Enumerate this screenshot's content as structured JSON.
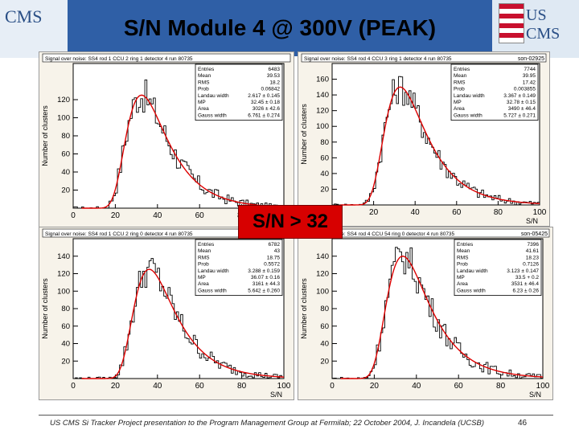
{
  "slide": {
    "title": "S/N Module 4 @ 300V (PEAK)",
    "left_logo_text": "CMS",
    "right_logo_text": "US CMS",
    "footer": "US CMS Si Tracker Project presentation to the Program Management Group at Fermilab; 22 October 2004, J. Incandela (UCSB)",
    "page_number": "46",
    "callout": "S/N > 32"
  },
  "chart_data": [
    {
      "type": "histogram",
      "title": "Signal over noise: SS4 rod 1 CCU 2 ring 1 detector 4 run 80735",
      "tag": "",
      "xlabel": "S/N",
      "ylabel": "Number of clusters",
      "xlim": [
        0,
        100
      ],
      "ylim": [
        0,
        160
      ],
      "xticks": [
        0,
        20,
        40,
        60,
        80,
        100
      ],
      "yticks": [
        20,
        40,
        60,
        80,
        100,
        120
      ],
      "stats": [
        [
          "Entries",
          "6483"
        ],
        [
          "Mean",
          "39.53"
        ],
        [
          "RMS",
          "18.2"
        ],
        [
          "Prob",
          "0.06842"
        ],
        [
          "Landau width",
          "2.617 ± 0.145"
        ],
        [
          "MP",
          "32.45 ± 0.18"
        ],
        [
          "Area",
          "3026 ± 42.6"
        ],
        [
          "Gauss width",
          "6.761 ± 0.274"
        ]
      ],
      "fit": {
        "mp": 32.45,
        "landau_width": 2.617,
        "gauss_width": 6.761,
        "peak": 125
      }
    },
    {
      "type": "histogram",
      "title": "Signal over noise: SS4 rod 4 CCU 3 ring 1 detector 4 run 80735",
      "tag": "son-02925",
      "xlabel": "S/N",
      "ylabel": "Number of clusters",
      "xlim": [
        0,
        100
      ],
      "ylim": [
        0,
        180
      ],
      "xticks": [
        0,
        20,
        40,
        60,
        80,
        100
      ],
      "yticks": [
        20,
        40,
        60,
        80,
        100,
        120,
        140,
        160
      ],
      "stats": [
        [
          "Entries",
          "7744"
        ],
        [
          "Mean",
          "39.95"
        ],
        [
          "RMS",
          "17.42"
        ],
        [
          "Prob",
          "0.003855"
        ],
        [
          "Landau width",
          "3.367 ± 0.149"
        ],
        [
          "MP",
          "32.78 ± 0.15"
        ],
        [
          "Area",
          "3490 ± 46.4"
        ],
        [
          "Gauss width",
          "5.727 ± 0.271"
        ]
      ],
      "fit": {
        "mp": 32.78,
        "landau_width": 3.367,
        "gauss_width": 5.727,
        "peak": 150
      }
    },
    {
      "type": "histogram",
      "title": "Signal over noise: SS4 rod 1 CCU 2 ring 0 detector 4 run 80735",
      "tag": "son-0",
      "xlabel": "S/N",
      "ylabel": "Number of clusters",
      "xlim": [
        0,
        100
      ],
      "ylim": [
        0,
        160
      ],
      "xticks": [
        0,
        20,
        40,
        60,
        80,
        100
      ],
      "yticks": [
        20,
        40,
        60,
        80,
        100,
        120,
        140
      ],
      "stats": [
        [
          "Entries",
          "6782"
        ],
        [
          "Mean",
          "43"
        ],
        [
          "RMS",
          "18.75"
        ],
        [
          "Prob",
          "0.5572"
        ],
        [
          "Landau width",
          "3.288 ± 0.159"
        ],
        [
          "MP",
          "36.07 ± 0.16"
        ],
        [
          "Area",
          "3161 ± 44.3"
        ],
        [
          "Gauss width",
          "5.642 ± 0.260"
        ]
      ],
      "fit": {
        "mp": 36.07,
        "landau_width": 3.288,
        "gauss_width": 5.642,
        "peak": 125
      }
    },
    {
      "type": "histogram",
      "title": "Signal over noise: SS4 rod 4 CCU 54 ring 0 detector 4 run 80735",
      "tag": "son-05425",
      "xlabel": "S/N",
      "ylabel": "Number of clusters",
      "xlim": [
        0,
        100
      ],
      "ylim": [
        0,
        160
      ],
      "xticks": [
        0,
        20,
        40,
        60,
        80,
        100
      ],
      "yticks": [
        20,
        40,
        60,
        80,
        100,
        120,
        140
      ],
      "stats": [
        [
          "Entries",
          "7396"
        ],
        [
          "Mean",
          "41.61"
        ],
        [
          "RMS",
          "18.23"
        ],
        [
          "Prob",
          "0.7126"
        ],
        [
          "Landau width",
          "3.123 ± 0.147"
        ],
        [
          "MP",
          "33.5 + 0.2"
        ],
        [
          "Area",
          "3531 ± 46.4"
        ],
        [
          "Gauss width",
          "6.23 ± 0.26"
        ]
      ],
      "fit": {
        "mp": 33.5,
        "landau_width": 3.123,
        "gauss_width": 6.23,
        "peak": 140
      }
    }
  ],
  "colors": {
    "banner": "#2f5fa6",
    "fit": "#dd0000",
    "callout": "#d70000",
    "panel": "#f7f3ea"
  }
}
